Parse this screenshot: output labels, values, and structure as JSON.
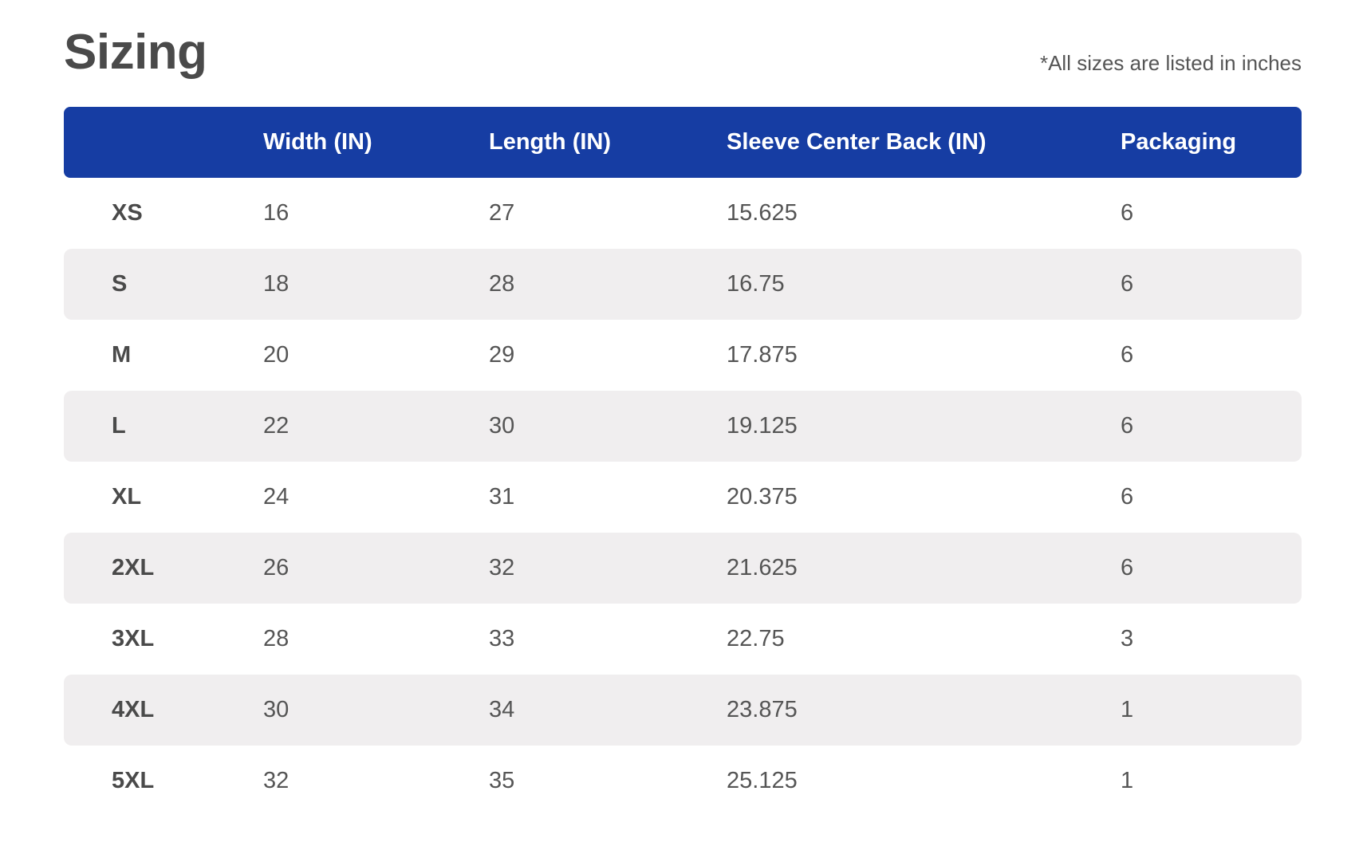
{
  "header": {
    "title": "Sizing",
    "note": "*All sizes are listed in inches"
  },
  "table": {
    "columns": [
      "",
      "Width (IN)",
      "Length (IN)",
      "Sleeve Center Back (IN)",
      "Packaging"
    ],
    "rows": [
      [
        "XS",
        "16",
        "27",
        "15.625",
        "6"
      ],
      [
        "S",
        "18",
        "28",
        "16.75",
        "6"
      ],
      [
        "M",
        "20",
        "29",
        "17.875",
        "6"
      ],
      [
        "L",
        "22",
        "30",
        "19.125",
        "6"
      ],
      [
        "XL",
        "24",
        "31",
        "20.375",
        "6"
      ],
      [
        "2XL",
        "26",
        "32",
        "21.625",
        "6"
      ],
      [
        "3XL",
        "28",
        "33",
        "22.75",
        "3"
      ],
      [
        "4XL",
        "30",
        "34",
        "23.875",
        "1"
      ],
      [
        "5XL",
        "32",
        "35",
        "25.125",
        "1"
      ]
    ]
  },
  "colors": {
    "header_bg": "#163da3",
    "alt_row_bg": "#f0eeef",
    "text": "#4a4a4a"
  }
}
